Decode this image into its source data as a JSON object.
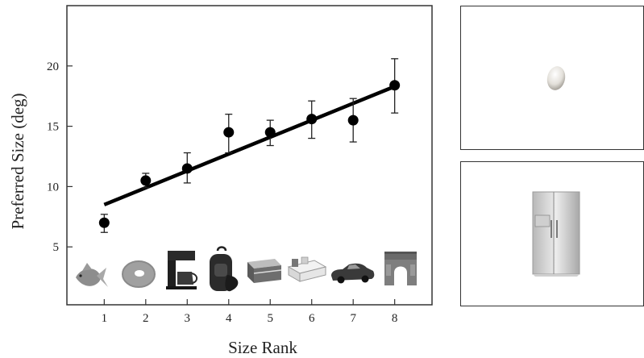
{
  "chart_data": {
    "type": "scatter",
    "xlabel": "Size Rank",
    "ylabel": "Preferred Size (deg)",
    "xlim": [
      0.1,
      8.9
    ],
    "ylim": [
      0.2,
      25
    ],
    "x_ticks": [
      1,
      2,
      3,
      4,
      5,
      6,
      7,
      8
    ],
    "y_ticks": [
      5,
      10,
      15,
      20
    ],
    "grid": false,
    "points": [
      {
        "x": 1,
        "y": 7.0,
        "err_low": 6.2,
        "err_high": 7.7
      },
      {
        "x": 2,
        "y": 10.5,
        "err_low": 9.9,
        "err_high": 11.1
      },
      {
        "x": 3,
        "y": 11.5,
        "err_low": 10.3,
        "err_high": 12.8
      },
      {
        "x": 4,
        "y": 14.5,
        "err_low": 12.8,
        "err_high": 16.0
      },
      {
        "x": 5,
        "y": 14.5,
        "err_low": 13.4,
        "err_high": 15.5
      },
      {
        "x": 6,
        "y": 15.6,
        "err_low": 14.0,
        "err_high": 17.1
      },
      {
        "x": 7,
        "y": 15.5,
        "err_low": 13.7,
        "err_high": 17.3
      },
      {
        "x": 8,
        "y": 18.4,
        "err_low": 16.1,
        "err_high": 20.6
      }
    ],
    "fit_line": {
      "x_start": 1,
      "y_start": 8.5,
      "x_end": 8,
      "y_end": 18.3
    },
    "object_icons": [
      "goldfish-icon",
      "bagel-icon",
      "coffee-maker-icon",
      "backpack-icon",
      "cooler-icon",
      "bed-icon",
      "car-icon",
      "arch-icon"
    ]
  },
  "panels": [
    {
      "object_icon": "egg-icon"
    },
    {
      "object_icon": "refrigerator-icon"
    }
  ]
}
